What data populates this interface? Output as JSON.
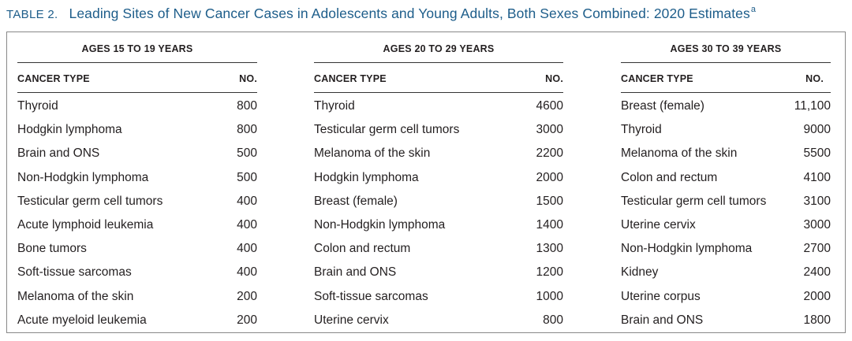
{
  "caption": {
    "label": "TABLE 2.",
    "title": "Leading Sites of New Cancer Cases in Adolescents and Young Adults, Both Sexes Combined: 2020 Estimates",
    "footnote_mark": "a"
  },
  "groups": [
    {
      "title": "AGES 15 TO 19 YEARS",
      "col_type": "CANCER TYPE",
      "col_no": "NO.",
      "rows": [
        {
          "type": "Thyroid",
          "no": "800"
        },
        {
          "type": "Hodgkin lymphoma",
          "no": "800"
        },
        {
          "type": "Brain and ONS",
          "no": "500"
        },
        {
          "type": "Non-Hodgkin lymphoma",
          "no": "500"
        },
        {
          "type": "Testicular germ cell tumors",
          "no": "400"
        },
        {
          "type": "Acute lymphoid leukemia",
          "no": "400"
        },
        {
          "type": "Bone tumors",
          "no": "400"
        },
        {
          "type": "Soft-tissue sarcomas",
          "no": "400"
        },
        {
          "type": "Melanoma of the skin",
          "no": "200"
        },
        {
          "type": "Acute myeloid leukemia",
          "no": "200"
        }
      ]
    },
    {
      "title": "AGES 20 TO 29 YEARS",
      "col_type": "CANCER TYPE",
      "col_no": "NO.",
      "rows": [
        {
          "type": "Thyroid",
          "no": "4600"
        },
        {
          "type": "Testicular germ cell tumors",
          "no": "3000"
        },
        {
          "type": "Melanoma of the skin",
          "no": "2200"
        },
        {
          "type": "Hodgkin lymphoma",
          "no": "2000"
        },
        {
          "type": "Breast (female)",
          "no": "1500"
        },
        {
          "type": "Non-Hodgkin lymphoma",
          "no": "1400"
        },
        {
          "type": "Colon and rectum",
          "no": "1300"
        },
        {
          "type": "Brain and ONS",
          "no": "1200"
        },
        {
          "type": "Soft-tissue sarcomas",
          "no": "1000"
        },
        {
          "type": "Uterine cervix",
          "no": "800"
        }
      ]
    },
    {
      "title": "AGES 30 TO 39 YEARS",
      "col_type": "CANCER TYPE",
      "col_no": "NO.",
      "rows": [
        {
          "type": "Breast (female)",
          "no": "11,100"
        },
        {
          "type": "Thyroid",
          "no": "9000"
        },
        {
          "type": "Melanoma of the skin",
          "no": "5500"
        },
        {
          "type": "Colon and rectum",
          "no": "4100"
        },
        {
          "type": "Testicular germ cell tumors",
          "no": "3100"
        },
        {
          "type": "Uterine cervix",
          "no": "3000"
        },
        {
          "type": "Non-Hodgkin lymphoma",
          "no": "2700"
        },
        {
          "type": "Kidney",
          "no": "2400"
        },
        {
          "type": "Uterine corpus",
          "no": "2000"
        },
        {
          "type": "Brain and ONS",
          "no": "1800"
        }
      ]
    }
  ],
  "colors": {
    "caption": "#1d5d8a",
    "text": "#231f20",
    "border": "#888888"
  }
}
